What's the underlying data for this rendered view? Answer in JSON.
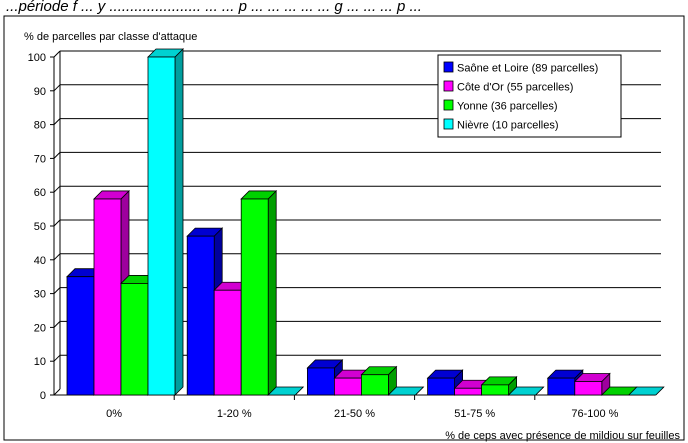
{
  "caption_top": "...période f ... y ...................... ... ... p ... ... ... ... ... g ... ... ... p ...",
  "chart_data": {
    "type": "bar",
    "ylabel": "% de parcelles par classe  d'attaque",
    "xlabel": "% de ceps avec présence de mildiou sur feuilles",
    "ylim": [
      0,
      100
    ],
    "yticks": [
      0,
      10,
      20,
      30,
      40,
      50,
      60,
      70,
      80,
      90,
      100
    ],
    "grid": true,
    "legend_position": "top-right",
    "categories": [
      "0%",
      "1-20 %",
      "21-50 %",
      "51-75 %",
      "76-100 %"
    ],
    "series": [
      {
        "name": "Saône et Loire (89 parcelles)",
        "color": "#0000ff",
        "values": [
          35,
          47,
          8,
          5,
          5
        ]
      },
      {
        "name": "Côte d'Or (55 parcelles)",
        "color": "#ff00ff",
        "values": [
          58,
          31,
          5,
          2,
          4
        ]
      },
      {
        "name": "Yonne (36 parcelles)",
        "color": "#00ff00",
        "values": [
          33,
          58,
          6,
          3,
          0
        ]
      },
      {
        "name": "Nièvre (10 parcelles)",
        "color": "#00ffff",
        "values": [
          100,
          0,
          0,
          0,
          0
        ]
      }
    ]
  }
}
